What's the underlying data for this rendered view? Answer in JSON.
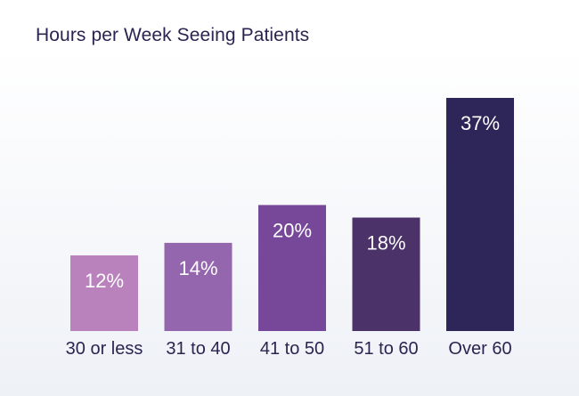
{
  "chart_data": {
    "type": "bar",
    "title": "Hours per Week Seeing Patients",
    "xlabel": "",
    "ylabel": "",
    "categories": [
      "30 or less",
      "31 to 40",
      "41 to 50",
      "51 to 60",
      "Over 60"
    ],
    "values": [
      12,
      14,
      20,
      18,
      37
    ],
    "value_labels": [
      "12%",
      "14%",
      "20%",
      "18%",
      "37%"
    ],
    "unit": "%",
    "ylim": [
      0,
      37
    ],
    "grid": false,
    "legend": "none",
    "colors": [
      "#b982bd",
      "#9466ae",
      "#774899",
      "#4b3268",
      "#2e2658"
    ]
  }
}
